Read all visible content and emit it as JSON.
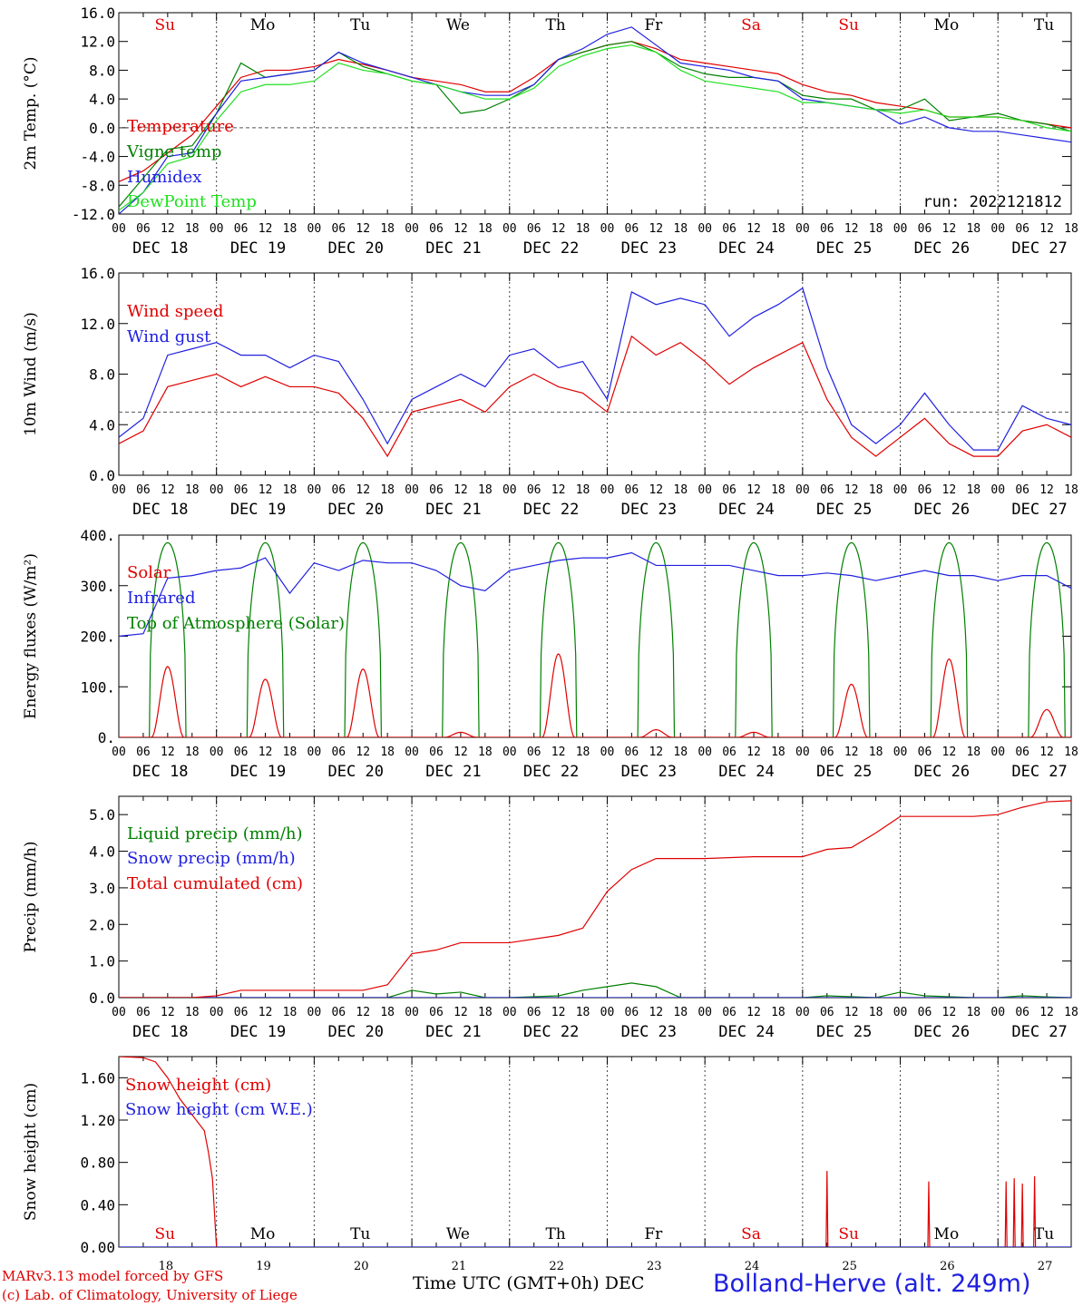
{
  "chart_data": [
    {
      "type": "line",
      "ylabel": "2m Temp. (°C)",
      "ylim": [
        -12,
        16
      ],
      "yticks": [
        "16.0",
        "12.0",
        "8.0",
        "4.0",
        "0.0",
        "-4.0",
        "-8.0",
        "-12.0"
      ],
      "ytick_values": [
        16,
        12,
        8,
        4,
        0,
        -4,
        -8,
        -12
      ],
      "reference_line": 0,
      "run_label": "run: 2022121812",
      "series": [
        {
          "name": "Temperature",
          "color": "#e00000",
          "x": [
            0,
            6,
            12,
            18,
            24,
            30,
            36,
            42,
            48,
            54,
            60,
            66,
            72,
            78,
            84,
            90,
            96,
            102,
            108,
            114,
            120,
            126,
            132,
            138,
            144,
            150,
            156,
            162,
            168,
            174,
            180,
            186,
            192,
            198,
            204,
            210,
            216,
            222,
            228,
            234
          ],
          "y": [
            -7.5,
            -6,
            -3.5,
            -1,
            3,
            7,
            8,
            8,
            8.5,
            9.5,
            8.8,
            8,
            7,
            6.5,
            6,
            5,
            5,
            7,
            9.5,
            10.5,
            11.5,
            12,
            11,
            9.5,
            9,
            8.5,
            8,
            7.5,
            6,
            5,
            4.5,
            3.5,
            3,
            2.5,
            1.5,
            1.5,
            1.5,
            1,
            0.5,
            0
          ]
        },
        {
          "name": "Vigne temp",
          "color": "#008000",
          "x": [
            0,
            6,
            12,
            18,
            24,
            30,
            36,
            42,
            48,
            54,
            60,
            66,
            72,
            78,
            84,
            90,
            96,
            102,
            108,
            114,
            120,
            126,
            132,
            138,
            144,
            150,
            156,
            162,
            168,
            174,
            180,
            186,
            192,
            198,
            204,
            210,
            216,
            222,
            228,
            234
          ],
          "y": [
            -11,
            -7,
            -3,
            -2.5,
            2,
            9,
            7,
            7.5,
            8,
            10.5,
            8.5,
            7.5,
            6.5,
            6,
            2,
            2.5,
            4,
            6,
            9.5,
            10.5,
            11.5,
            12,
            10.5,
            8.5,
            7.5,
            7,
            7,
            6.5,
            4.5,
            4,
            4,
            2.5,
            2.5,
            4,
            1,
            1.5,
            2,
            1,
            0.5,
            -0.5
          ]
        },
        {
          "name": "Humidex",
          "color": "#2020e0",
          "x": [
            0,
            6,
            12,
            18,
            24,
            30,
            36,
            42,
            48,
            54,
            60,
            66,
            72,
            78,
            84,
            90,
            96,
            102,
            108,
            114,
            120,
            126,
            132,
            138,
            144,
            150,
            156,
            162,
            168,
            174,
            180,
            186,
            192,
            198,
            204,
            210,
            216,
            222,
            228,
            234
          ],
          "y": [
            -12,
            -9,
            -4,
            -3.5,
            2,
            6.5,
            7,
            7.5,
            8,
            10.5,
            9,
            8,
            7,
            6,
            5,
            4.5,
            4.5,
            6,
            9.5,
            11,
            13,
            14,
            11.5,
            9,
            8.5,
            8,
            7,
            6.5,
            4,
            3.5,
            3,
            2.5,
            0.5,
            1.5,
            0,
            -0.5,
            -0.5,
            -1,
            -1.5,
            -2
          ]
        },
        {
          "name": "DewPoint Temp",
          "color": "#20e020",
          "x": [
            0,
            6,
            12,
            18,
            24,
            30,
            36,
            42,
            48,
            54,
            60,
            66,
            72,
            78,
            84,
            90,
            96,
            102,
            108,
            114,
            120,
            126,
            132,
            138,
            144,
            150,
            156,
            162,
            168,
            174,
            180,
            186,
            192,
            198,
            204,
            210,
            216,
            222,
            228,
            234
          ],
          "y": [
            -11.5,
            -9,
            -5,
            -4,
            1,
            5,
            6,
            6,
            6.5,
            9,
            8,
            7.5,
            6.5,
            6,
            5,
            4,
            4,
            5.5,
            8.5,
            10,
            11,
            11.5,
            10.5,
            8,
            6.5,
            6,
            5.5,
            5,
            3.5,
            3.5,
            3,
            2.5,
            2,
            2.5,
            1.5,
            1.5,
            1.5,
            1,
            0,
            -0.5
          ]
        }
      ]
    },
    {
      "type": "line",
      "ylabel": "10m Wind (m/s)",
      "ylim": [
        0,
        16
      ],
      "yticks": [
        "16.0",
        "12.0",
        "8.0",
        "4.0",
        "0.0"
      ],
      "ytick_values": [
        16,
        12,
        8,
        4,
        0
      ],
      "reference_line": 5,
      "series": [
        {
          "name": "Wind speed",
          "color": "#e00000",
          "x": [
            0,
            6,
            12,
            18,
            24,
            30,
            36,
            42,
            48,
            54,
            60,
            66,
            72,
            78,
            84,
            90,
            96,
            102,
            108,
            114,
            120,
            126,
            132,
            138,
            144,
            150,
            156,
            162,
            168,
            174,
            180,
            186,
            192,
            198,
            204,
            210,
            216,
            222,
            228,
            234
          ],
          "y": [
            2.5,
            3.5,
            7,
            7.5,
            8,
            7,
            7.8,
            7,
            7,
            6.5,
            4.5,
            1.5,
            5,
            5.5,
            6,
            5,
            7,
            8,
            7,
            6.5,
            5,
            11,
            9.5,
            10.5,
            9,
            7.2,
            8.5,
            9.5,
            10.5,
            6,
            3,
            1.5,
            3,
            4.5,
            2.5,
            1.5,
            1.5,
            3.5,
            4,
            3
          ]
        },
        {
          "name": "Wind gust",
          "color": "#2020e0",
          "x": [
            0,
            6,
            12,
            18,
            24,
            30,
            36,
            42,
            48,
            54,
            60,
            66,
            72,
            78,
            84,
            90,
            96,
            102,
            108,
            114,
            120,
            126,
            132,
            138,
            144,
            150,
            156,
            162,
            168,
            174,
            180,
            186,
            192,
            198,
            204,
            210,
            216,
            222,
            228,
            234
          ],
          "y": [
            3,
            4.5,
            9.5,
            10,
            10.5,
            9.5,
            9.5,
            8.5,
            9.5,
            9,
            6,
            2.5,
            6,
            7,
            8,
            7,
            9.5,
            10,
            8.5,
            9,
            6,
            14.5,
            13.5,
            14,
            13.5,
            11,
            12.5,
            13.5,
            14.8,
            8.5,
            4,
            2.5,
            4,
            6.5,
            4,
            2,
            2,
            5.5,
            4.5,
            4
          ]
        }
      ]
    },
    {
      "type": "line",
      "ylabel": "Energy fluxes (W/m²)",
      "ylim": [
        0,
        400
      ],
      "yticks": [
        "400.",
        "300.",
        "200.",
        "100.",
        "0."
      ],
      "ytick_values": [
        400,
        300,
        200,
        100,
        0
      ],
      "solar_peaks": [
        140,
        115,
        135,
        10,
        165,
        15,
        10,
        105,
        155,
        55
      ],
      "toa_peak": 385,
      "series": [
        {
          "name": "Solar",
          "color": "#e00000"
        },
        {
          "name": "Infrared",
          "color": "#2020e0",
          "x": [
            0,
            6,
            12,
            18,
            24,
            30,
            36,
            42,
            48,
            54,
            60,
            66,
            72,
            78,
            84,
            90,
            96,
            102,
            108,
            114,
            120,
            126,
            132,
            138,
            144,
            150,
            156,
            162,
            168,
            174,
            180,
            186,
            192,
            198,
            204,
            210,
            216,
            222,
            228,
            234
          ],
          "y": [
            200,
            205,
            315,
            320,
            330,
            335,
            355,
            285,
            345,
            330,
            350,
            345,
            345,
            330,
            300,
            290,
            330,
            340,
            350,
            355,
            355,
            365,
            340,
            340,
            340,
            340,
            330,
            320,
            320,
            325,
            320,
            310,
            320,
            330,
            320,
            320,
            310,
            320,
            320,
            295
          ]
        },
        {
          "name": "Top of Atmosphere (Solar)",
          "color": "#008000"
        }
      ]
    },
    {
      "type": "line",
      "ylabel": "Precip (mm/h)",
      "ylim": [
        0,
        5.5
      ],
      "yticks": [
        "5.0",
        "4.0",
        "3.0",
        "2.0",
        "1.0",
        "0.0"
      ],
      "ytick_values": [
        5,
        4,
        3,
        2,
        1,
        0
      ],
      "series": [
        {
          "name": "Liquid precip (mm/h)",
          "color": "#008000",
          "x": [
            0,
            66,
            72,
            78,
            84,
            90,
            96,
            108,
            114,
            120,
            126,
            132,
            138,
            144,
            168,
            174,
            186,
            192,
            198,
            210,
            216,
            222,
            228,
            234
          ],
          "y": [
            0,
            0,
            0.2,
            0.1,
            0.15,
            0,
            0,
            0.05,
            0.2,
            0.3,
            0.4,
            0.3,
            0,
            0,
            0,
            0.05,
            0,
            0.15,
            0.05,
            0,
            0,
            0.05,
            0.02,
            0
          ]
        },
        {
          "name": "Snow precip (mm/h)",
          "color": "#2020e0",
          "x": [
            0,
            234
          ],
          "y": [
            0,
            0
          ]
        },
        {
          "name": "Total cumulated (cm)",
          "color": "#e00000",
          "x": [
            0,
            18,
            24,
            30,
            42,
            60,
            66,
            72,
            78,
            84,
            96,
            108,
            114,
            120,
            126,
            132,
            138,
            144,
            156,
            168,
            174,
            180,
            186,
            192,
            198,
            204,
            210,
            216,
            222,
            228,
            234
          ],
          "y": [
            0,
            0,
            0.05,
            0.2,
            0.2,
            0.2,
            0.35,
            1.2,
            1.3,
            1.5,
            1.5,
            1.7,
            1.9,
            2.9,
            3.5,
            3.8,
            3.8,
            3.8,
            3.85,
            3.85,
            4.05,
            4.1,
            4.5,
            4.95,
            4.95,
            4.95,
            4.95,
            5.0,
            5.2,
            5.35,
            5.38
          ]
        }
      ]
    },
    {
      "type": "line",
      "ylabel": "Snow height (cm)",
      "ylim": [
        0,
        1.8
      ],
      "yticks": [
        "1.60",
        "1.20",
        "0.80",
        "0.40",
        "0.00"
      ],
      "ytick_values": [
        1.6,
        1.2,
        0.8,
        0.4,
        0
      ],
      "xticks": [
        "18",
        "19",
        "20",
        "21",
        "22",
        "23",
        "24",
        "25",
        "26",
        "27"
      ],
      "spikes": [
        {
          "x": 174,
          "y": 0.72
        },
        {
          "x": 199,
          "y": 0.62
        },
        {
          "x": 218,
          "y": 0.62
        },
        {
          "x": 220,
          "y": 0.65
        },
        {
          "x": 222,
          "y": 0.6
        },
        {
          "x": 225,
          "y": 0.67
        }
      ],
      "series": [
        {
          "name": "Snow height (cm)",
          "color": "#e00000",
          "x": [
            0,
            6,
            9,
            12,
            15,
            18,
            21,
            22,
            23,
            24
          ],
          "y": [
            1.8,
            1.79,
            1.75,
            1.6,
            1.4,
            1.25,
            1.1,
            0.9,
            0.65,
            0
          ]
        },
        {
          "name": "Snow height (cm W.E.)",
          "color": "#2020e0",
          "x": [
            0,
            234
          ],
          "y": [
            0,
            0
          ]
        }
      ]
    }
  ],
  "common": {
    "x_hour_labels": [
      "00",
      "06",
      "12",
      "18"
    ],
    "date_labels": [
      "DEC 18",
      "DEC 19",
      "DEC 20",
      "DEC 21",
      "DEC 22",
      "DEC 23",
      "DEC 24",
      "DEC 25",
      "DEC 26",
      "DEC 27"
    ],
    "weekdays": [
      "Su",
      "Mo",
      "Tu",
      "We",
      "Th",
      "Fr",
      "Sa",
      "Su",
      "Mo",
      "Tu"
    ],
    "weekday_colors": [
      "#e00000",
      "#000000",
      "#000000",
      "#000000",
      "#000000",
      "#000000",
      "#e00000",
      "#e00000",
      "#000000",
      "#000000"
    ]
  },
  "footer": {
    "model": "MARv3.13 model forced by GFS",
    "lab": "(c) Lab. of Climatology, University of Liege",
    "xlabel": "Time UTC (GMT+0h) DEC",
    "station": "Bolland-Herve (alt. 249m)"
  }
}
